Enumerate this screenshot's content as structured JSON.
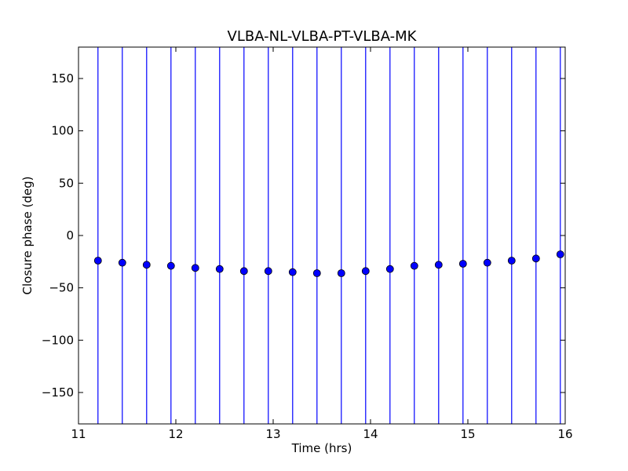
{
  "chart_data": {
    "type": "scatter",
    "title": "VLBA-NL-VLBA-PT-VLBA-MK",
    "xlabel": "Time (hrs)",
    "ylabel": "Closure phase (deg)",
    "xlim": [
      11,
      16
    ],
    "ylim": [
      -180,
      180
    ],
    "xticks": [
      11,
      12,
      13,
      14,
      15,
      16
    ],
    "yticks": [
      150,
      100,
      50,
      0,
      -50,
      -100,
      -150
    ],
    "ytick_labels": [
      "150",
      "100",
      "50",
      "0",
      "−50",
      "−100",
      "−150"
    ],
    "grid": false,
    "legend": "none",
    "error_bars": "vertical lines spanning full y range",
    "series": [
      {
        "color": "#0000ff",
        "marker": "circle",
        "x": [
          11.2,
          11.45,
          11.7,
          11.95,
          12.2,
          12.45,
          12.7,
          12.95,
          13.2,
          13.45,
          13.7,
          13.95,
          14.2,
          14.45,
          14.7,
          14.95,
          15.2,
          15.45,
          15.7,
          15.95
        ],
        "y": [
          -24,
          -26,
          -28,
          -29,
          -31,
          -32,
          -34,
          -34,
          -35,
          -36,
          -36,
          -34,
          -32,
          -29,
          -28,
          -27,
          -26,
          -24,
          -22,
          -18
        ]
      }
    ]
  }
}
